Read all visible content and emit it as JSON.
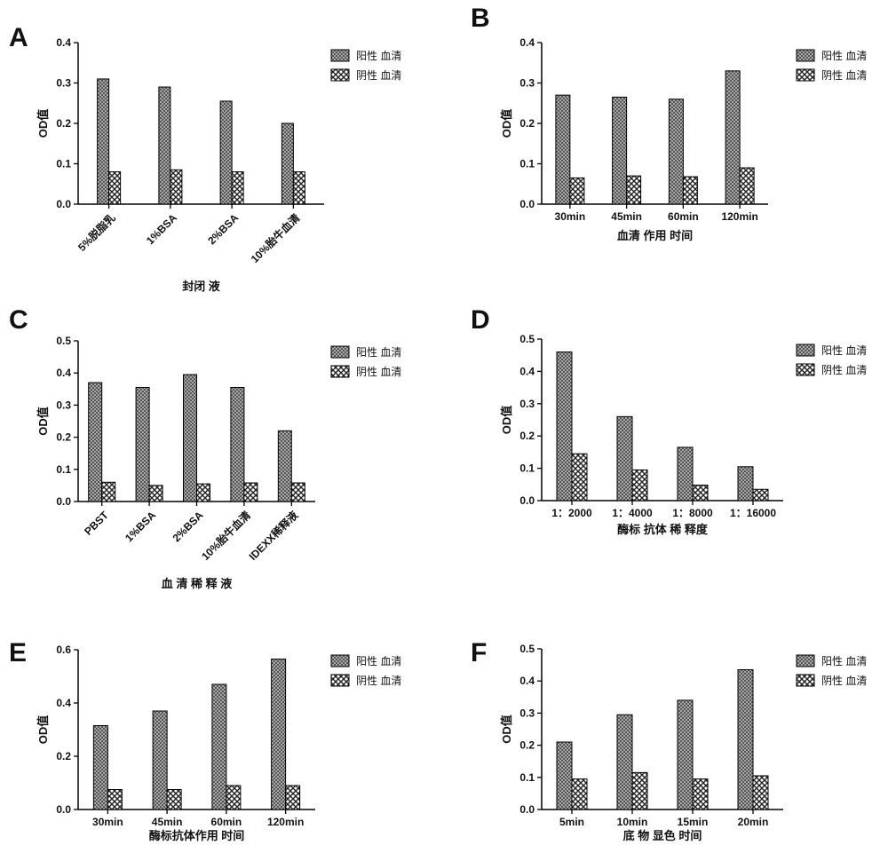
{
  "colors": {
    "positive_fill": "#8a8a8a",
    "negative_fill": "#ffffff",
    "axis": "#000000"
  },
  "legend_labels": [
    "阳性 血清",
    "阴性 血清"
  ],
  "chart_data": [
    {
      "panel": "A",
      "type": "bar",
      "ylabel": "OD值",
      "xlabel": "封闭 液",
      "categories": [
        "5%脱脂乳",
        "1%BSA",
        "2%BSA",
        "10%胎牛血清"
      ],
      "ylim": [
        0,
        0.4
      ],
      "yticks": [
        "0.0",
        "0.1",
        "0.2",
        "0.3",
        "0.4"
      ],
      "rotated_ticks": true,
      "series": [
        {
          "name": "阳性 血清",
          "values": [
            0.31,
            0.29,
            0.255,
            0.2
          ]
        },
        {
          "name": "阴性 血清",
          "values": [
            0.08,
            0.085,
            0.08,
            0.08
          ]
        }
      ]
    },
    {
      "panel": "B",
      "type": "bar",
      "ylabel": "OD值",
      "xlabel": "血清 作用 时间",
      "categories": [
        "30min",
        "45min",
        "60min",
        "120min"
      ],
      "ylim": [
        0,
        0.4
      ],
      "yticks": [
        "0.0",
        "0.1",
        "0.2",
        "0.3",
        "0.4"
      ],
      "rotated_ticks": false,
      "series": [
        {
          "name": "阳性 血清",
          "values": [
            0.27,
            0.265,
            0.26,
            0.33
          ]
        },
        {
          "name": "阴性 血清",
          "values": [
            0.065,
            0.07,
            0.068,
            0.09
          ]
        }
      ]
    },
    {
      "panel": "C",
      "type": "bar",
      "ylabel": "OD值",
      "xlabel": "血 清 稀 释 液",
      "categories": [
        "PBST",
        "1%BSA",
        "2%BSA",
        "10%胎牛血清",
        "IDEXX稀释液"
      ],
      "ylim": [
        0,
        0.5
      ],
      "yticks": [
        "0.0",
        "0.1",
        "0.2",
        "0.3",
        "0.4",
        "0.5"
      ],
      "rotated_ticks": true,
      "series": [
        {
          "name": "阳性 血清",
          "values": [
            0.37,
            0.355,
            0.395,
            0.355,
            0.22
          ]
        },
        {
          "name": "阴性 血清",
          "values": [
            0.06,
            0.05,
            0.055,
            0.058,
            0.058
          ]
        }
      ]
    },
    {
      "panel": "D",
      "type": "bar",
      "ylabel": "OD值",
      "xlabel": "酶标 抗体 稀 释度",
      "categories": [
        "1：2000",
        "1：4000",
        "1：8000",
        "1：16000"
      ],
      "ylim": [
        0,
        0.5
      ],
      "yticks": [
        "0.0",
        "0.1",
        "0.2",
        "0.3",
        "0.4",
        "0.5"
      ],
      "rotated_ticks": false,
      "series": [
        {
          "name": "阳性 血清",
          "values": [
            0.46,
            0.26,
            0.165,
            0.105
          ]
        },
        {
          "name": "阴性 血清",
          "values": [
            0.145,
            0.095,
            0.048,
            0.035
          ]
        }
      ]
    },
    {
      "panel": "E",
      "type": "bar",
      "ylabel": "OD值",
      "xlabel": "酶标抗体作用 时间",
      "categories": [
        "30min",
        "45min",
        "60min",
        "120min"
      ],
      "ylim": [
        0,
        0.6
      ],
      "yticks": [
        "0.0",
        "0.2",
        "0.4",
        "0.6"
      ],
      "rotated_ticks": false,
      "series": [
        {
          "name": "阳性 血清",
          "values": [
            0.315,
            0.37,
            0.47,
            0.565
          ]
        },
        {
          "name": "阴性 血清",
          "values": [
            0.075,
            0.075,
            0.09,
            0.09
          ]
        }
      ]
    },
    {
      "panel": "F",
      "type": "bar",
      "ylabel": "OD值",
      "xlabel": "底 物 显色 时间",
      "categories": [
        "5min",
        "10min",
        "15min",
        "20min"
      ],
      "ylim": [
        0,
        0.5
      ],
      "yticks": [
        "0.0",
        "0.1",
        "0.2",
        "0.3",
        "0.4",
        "0.5"
      ],
      "rotated_ticks": false,
      "series": [
        {
          "name": "阳性 血清",
          "values": [
            0.21,
            0.295,
            0.34,
            0.435
          ]
        },
        {
          "name": "阴性 血清",
          "values": [
            0.095,
            0.115,
            0.095,
            0.105
          ]
        }
      ]
    }
  ]
}
